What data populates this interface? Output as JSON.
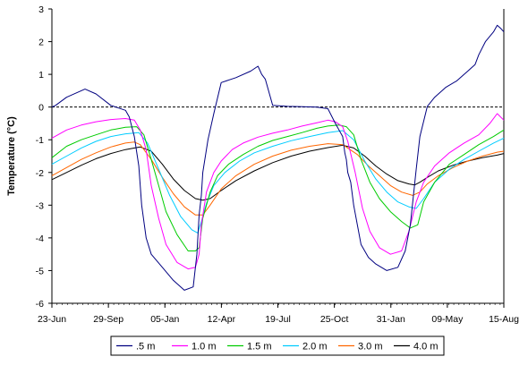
{
  "chart_data": {
    "type": "line",
    "title": "",
    "xlabel": "",
    "ylabel": "Temperature (°C)",
    "ylim": [
      -6,
      3
    ],
    "yticks": [
      3,
      2,
      1,
      0,
      -1,
      -2,
      -3,
      -4,
      -5,
      -6
    ],
    "xticks": [
      "23-Jun",
      "29-Sep",
      "05-Jan",
      "12-Apr",
      "19-Jul",
      "25-Oct",
      "31-Jan",
      "09-May",
      "15-Aug"
    ],
    "xlim": [
      "23-Jun",
      "15-Aug"
    ],
    "grid": false,
    "reference_line": {
      "y": 0,
      "style": "dashed",
      "color": "#000000"
    },
    "legend_position": "bottom",
    "series": [
      {
        "name": ".5 m",
        "color": "#000080",
        "x": [
          0,
          5,
          20,
          45,
          60,
          80,
          100,
          105,
          112,
          118,
          122,
          128,
          135,
          150,
          165,
          180,
          192,
          197,
          200,
          203,
          205,
          212,
          220,
          230,
          250,
          270,
          280,
          285,
          290,
          300,
          320,
          340,
          360,
          375,
          385,
          395,
          398,
          400,
          402,
          406,
          410,
          420,
          430,
          440,
          455,
          470,
          480,
          487,
          495,
          500,
          510,
          520,
          535,
          550,
          565,
          575,
          580,
          589,
          600,
          605,
          610,
          614
        ],
        "y": [
          0,
          0.05,
          0.3,
          0.55,
          0.4,
          0.05,
          -0.1,
          -0.3,
          -0.9,
          -1.8,
          -3,
          -4,
          -4.5,
          -4.9,
          -5.3,
          -5.6,
          -5.5,
          -4.5,
          -3.3,
          -2.7,
          -2,
          -1,
          -0.2,
          0.75,
          0.9,
          1.1,
          1.25,
          1,
          0.85,
          0.05,
          0.02,
          0.01,
          0,
          -0.05,
          -0.5,
          -0.9,
          -1.4,
          -1.6,
          -2,
          -2.3,
          -3,
          -4.2,
          -4.6,
          -4.8,
          -5,
          -4.9,
          -4.4,
          -3.6,
          -1.9,
          -0.9,
          0.02,
          0.3,
          0.6,
          0.8,
          1.1,
          1.3,
          1.6,
          2,
          2.3,
          2.5,
          2.4,
          2.3
        ]
      },
      {
        "name": "1.0 m",
        "color": "#ff00ff",
        "x": [
          0,
          20,
          40,
          60,
          80,
          100,
          112,
          120,
          128,
          135,
          145,
          155,
          170,
          185,
          195,
          200,
          203,
          210,
          220,
          230,
          245,
          260,
          280,
          300,
          320,
          340,
          360,
          375,
          385,
          395,
          402,
          412,
          422,
          432,
          445,
          460,
          475,
          485,
          495,
          505,
          520,
          540,
          560,
          580,
          595,
          605,
          614
        ],
        "y": [
          -0.95,
          -0.7,
          -0.55,
          -0.45,
          -0.38,
          -0.35,
          -0.4,
          -0.7,
          -1.3,
          -2.4,
          -3.4,
          -4.2,
          -4.75,
          -4.95,
          -4.9,
          -4.5,
          -3.6,
          -2.6,
          -2,
          -1.65,
          -1.3,
          -1.1,
          -0.92,
          -0.8,
          -0.7,
          -0.58,
          -0.48,
          -0.4,
          -0.45,
          -0.6,
          -1.05,
          -2,
          -3.1,
          -3.8,
          -4.3,
          -4.5,
          -4.4,
          -3.8,
          -2.9,
          -2.3,
          -1.8,
          -1.4,
          -1.1,
          -0.85,
          -0.5,
          -0.2,
          -0.4
        ]
      },
      {
        "name": "1.5 m",
        "color": "#00cc00",
        "x": [
          0,
          20,
          40,
          60,
          80,
          100,
          115,
          125,
          135,
          145,
          155,
          170,
          185,
          195,
          200,
          205,
          215,
          225,
          240,
          260,
          280,
          300,
          320,
          340,
          360,
          375,
          390,
          400,
          410,
          420,
          432,
          445,
          460,
          475,
          487,
          497,
          505,
          520,
          540,
          560,
          580,
          600,
          614
        ],
        "y": [
          -1.55,
          -1.2,
          -1,
          -0.85,
          -0.7,
          -0.62,
          -0.6,
          -0.85,
          -1.6,
          -2.4,
          -3.2,
          -3.9,
          -4.4,
          -4.4,
          -4.3,
          -3.4,
          -2.6,
          -2.1,
          -1.75,
          -1.45,
          -1.2,
          -1.02,
          -0.9,
          -0.78,
          -0.65,
          -0.58,
          -0.55,
          -0.6,
          -0.85,
          -1.6,
          -2.3,
          -2.8,
          -3.2,
          -3.5,
          -3.7,
          -3.6,
          -2.9,
          -2.3,
          -1.75,
          -1.45,
          -1.15,
          -0.9,
          -0.7
        ]
      },
      {
        "name": "2.0 m",
        "color": "#00ccff",
        "x": [
          0,
          20,
          40,
          60,
          80,
          100,
          118,
          130,
          145,
          160,
          175,
          190,
          198,
          203,
          210,
          220,
          235,
          255,
          275,
          300,
          325,
          350,
          375,
          395,
          410,
          425,
          440,
          455,
          470,
          485,
          495,
          505,
          520,
          540,
          560,
          580,
          600,
          614
        ],
        "y": [
          -1.75,
          -1.5,
          -1.25,
          -1.05,
          -0.9,
          -0.82,
          -0.78,
          -1.1,
          -1.9,
          -2.7,
          -3.35,
          -3.75,
          -3.85,
          -3.5,
          -2.95,
          -2.4,
          -2,
          -1.65,
          -1.4,
          -1.2,
          -1.03,
          -0.9,
          -0.78,
          -0.72,
          -1,
          -1.65,
          -2.2,
          -2.6,
          -2.9,
          -3.05,
          -3.1,
          -2.8,
          -2.3,
          -1.9,
          -1.6,
          -1.35,
          -1.1,
          -0.95
        ]
      },
      {
        "name": "3.0 m",
        "color": "#ff6600",
        "x": [
          0,
          20,
          40,
          60,
          80,
          100,
          112,
          120,
          135,
          150,
          165,
          180,
          195,
          205,
          215,
          230,
          250,
          275,
          300,
          325,
          350,
          375,
          395,
          415,
          430,
          445,
          460,
          475,
          490,
          500,
          510,
          525,
          545,
          565,
          585,
          605,
          614
        ],
        "y": [
          -2.1,
          -1.85,
          -1.6,
          -1.4,
          -1.22,
          -1.1,
          -1.07,
          -1.15,
          -1.6,
          -2.15,
          -2.65,
          -3.05,
          -3.3,
          -3.3,
          -3,
          -2.5,
          -2.1,
          -1.75,
          -1.5,
          -1.32,
          -1.2,
          -1.12,
          -1.15,
          -1.45,
          -1.8,
          -2.1,
          -2.4,
          -2.6,
          -2.7,
          -2.6,
          -2.35,
          -2.1,
          -1.85,
          -1.65,
          -1.5,
          -1.38,
          -1.35
        ]
      },
      {
        "name": "4.0 m",
        "color": "#000000",
        "x": [
          0,
          20,
          40,
          60,
          80,
          100,
          120,
          135,
          150,
          165,
          180,
          195,
          205,
          215,
          230,
          250,
          275,
          300,
          325,
          350,
          375,
          395,
          410,
          425,
          440,
          455,
          470,
          485,
          493,
          500,
          510,
          525,
          545,
          565,
          585,
          605,
          614
        ],
        "y": [
          -2.22,
          -2,
          -1.78,
          -1.58,
          -1.42,
          -1.3,
          -1.22,
          -1.35,
          -1.75,
          -2.2,
          -2.55,
          -2.8,
          -2.85,
          -2.8,
          -2.55,
          -2.25,
          -1.95,
          -1.7,
          -1.5,
          -1.35,
          -1.24,
          -1.17,
          -1.25,
          -1.5,
          -1.8,
          -2.05,
          -2.25,
          -2.35,
          -2.38,
          -2.3,
          -2.15,
          -1.95,
          -1.78,
          -1.65,
          -1.55,
          -1.47,
          -1.42
        ]
      }
    ]
  }
}
